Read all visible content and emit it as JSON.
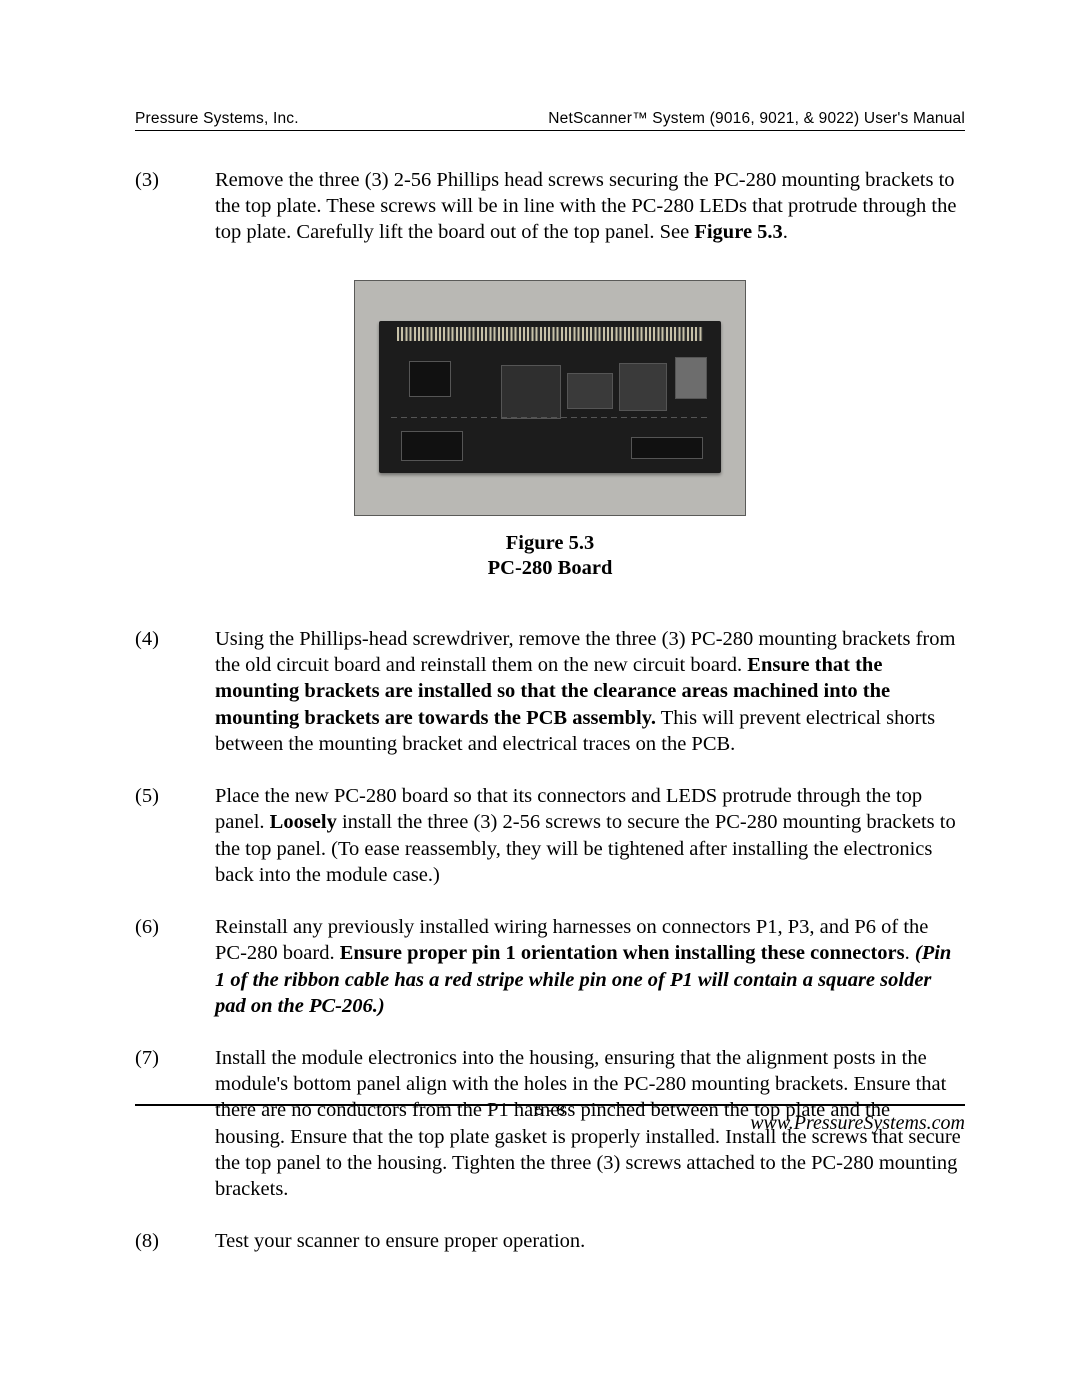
{
  "header": {
    "left": "Pressure Systems, Inc.",
    "right": "NetScanner™ System (9016, 9021, & 9022) User's Manual"
  },
  "steps": {
    "s3": {
      "num": "(3)",
      "t1": "Remove the three (3) 2-56 Phillips head screws securing the PC-280 mounting brackets to the top plate.  These screws will be in line with the PC-280 LEDs that protrude through the top plate.  Carefully lift the board out of the top panel.  See ",
      "b1": "Figure 5.3",
      "t2": "."
    },
    "s4": {
      "num": "(4)",
      "t1": "Using the Phillips-head screwdriver, remove the three (3) PC-280 mounting brackets from the old circuit board and reinstall them on the new circuit board.  ",
      "b1": "Ensure that the mounting brackets are installed so that the clearance areas machined into the mounting brackets are towards the PCB assembly.",
      "t2": "  This will prevent electrical shorts between the mounting bracket and electrical traces on the PCB."
    },
    "s5": {
      "num": "(5)",
      "t1": "Place the new PC-280 board so that its connectors and LEDS protrude through the top panel.  ",
      "b1": "Loosely",
      "t2": " install the three (3) 2-56 screws to secure the PC-280 mounting brackets to the top panel.  (To ease reassembly, they will be tightened after installing the electronics back into the module case.)"
    },
    "s6": {
      "num": "(6)",
      "t1": "Reinstall any previously installed wiring harnesses on connectors P1, P3, and P6 of the PC-280 board.  ",
      "b1": "Ensure proper pin 1 orientation when installing these connectors",
      "t2": ".  ",
      "i1": "(Pin 1 of the ribbon cable has a red stripe while pin one of P1 will contain a square solder pad on the PC-206.)"
    },
    "s7": {
      "num": "(7)",
      "t1": "Install the module electronics into the housing, ensuring that the alignment posts in the module's bottom panel align with the holes in the PC-280 mounting brackets.  Ensure that there are no conductors from the P1 harness pinched between the top plate and the housing. Ensure that the top plate gasket is properly installed.  Install the screws that secure the top panel to the housing.  Tighten the three (3) screws attached to the PC-280 mounting brackets."
    },
    "s8": {
      "num": "(8)",
      "t1": "Test your scanner to ensure proper operation."
    }
  },
  "figure": {
    "line1": "Figure 5.3",
    "line2": "PC-280 Board",
    "image_desc": "Photograph of PC-280 printed circuit board",
    "bg_color": "#b9b8b4",
    "board_color": "#1c1c1c"
  },
  "footer": {
    "page": "5 - 8",
    "url": "www.PressureSystems.com"
  }
}
